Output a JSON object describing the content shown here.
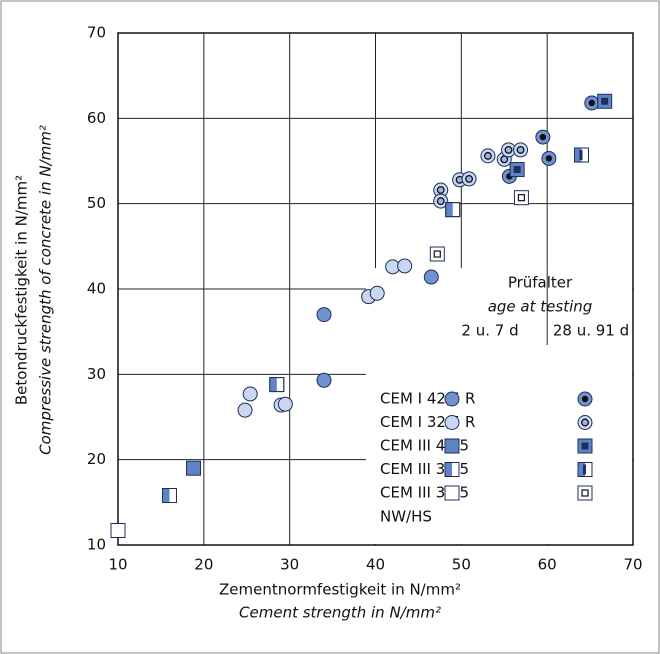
{
  "chart_data": {
    "type": "scatter",
    "xlabel": "Zementnormfestigkeit in N/mm²",
    "xlabel_en": "Cement strength in N/mm²",
    "ylabel": "Betondruckfestigkeit in N/mm²",
    "ylabel_en": "Compressive strength of concrete in N/mm²",
    "xlim": [
      10,
      70
    ],
    "xticks": [
      10,
      20,
      30,
      40,
      50,
      60,
      70
    ],
    "ylim": [
      10,
      70
    ],
    "yticks": [
      10,
      20,
      30,
      40,
      50,
      60,
      70
    ],
    "grid": true,
    "legend_title": "Prüfalter",
    "legend_subtitle": "age at testing",
    "ages": [
      "2 u. 7 d",
      "28 u. 91 d"
    ],
    "groups": [
      {
        "name": "CEM I 42,5 R",
        "shape": "circle",
        "inner": "dot",
        "color": "#7092cf",
        "early": {
          "x": [
            34.0,
            34.0,
            46.5
          ],
          "y": [
            37.0,
            29.3,
            41.4
          ]
        },
        "late": {
          "x": [
            55.6,
            59.5,
            60.2,
            65.2
          ],
          "y": [
            53.2,
            57.8,
            55.3,
            61.8
          ]
        }
      },
      {
        "name": "CEM I 32,5 R",
        "shape": "circle",
        "inner": "ring",
        "color": "#c9d8f0",
        "early": {
          "x": [
            24.8,
            25.4,
            29.0,
            29.5,
            39.2,
            40.2,
            42.0,
            43.4
          ],
          "y": [
            25.8,
            27.7,
            26.4,
            26.5,
            39.1,
            39.5,
            42.6,
            42.7
          ]
        },
        "late": {
          "x": [
            47.6,
            47.6,
            49.8,
            50.9,
            53.1,
            55.0,
            55.5,
            56.9
          ],
          "y": [
            51.6,
            50.3,
            52.8,
            52.9,
            55.6,
            55.2,
            56.3,
            56.3
          ]
        }
      },
      {
        "name": "CEM III 42,5",
        "shape": "square",
        "inner": "square",
        "color": "#5f83c4",
        "early": {
          "x": [
            18.8
          ],
          "y": [
            19.0
          ]
        },
        "late": {
          "x": [
            56.5,
            66.7
          ],
          "y": [
            54.0,
            62.0
          ]
        }
      },
      {
        "name": "CEM III 32,5",
        "shape": "half",
        "inner": "bar",
        "color": "#5f83c4",
        "early": {
          "x": [
            16.0,
            28.5,
            49.0
          ],
          "y": [
            15.8,
            28.8,
            49.3
          ]
        },
        "late": {
          "x": [
            64.0
          ],
          "y": [
            55.7
          ]
        }
      },
      {
        "name": "CEM III 32,5",
        "note": "NW/HS",
        "shape": "square",
        "inner": "box",
        "color": "#ffffff",
        "early": {
          "x": [
            10.0
          ],
          "y": [
            11.7
          ]
        },
        "late": {
          "x": [
            47.2,
            57.0
          ],
          "y": [
            44.1,
            50.7
          ]
        }
      }
    ]
  }
}
